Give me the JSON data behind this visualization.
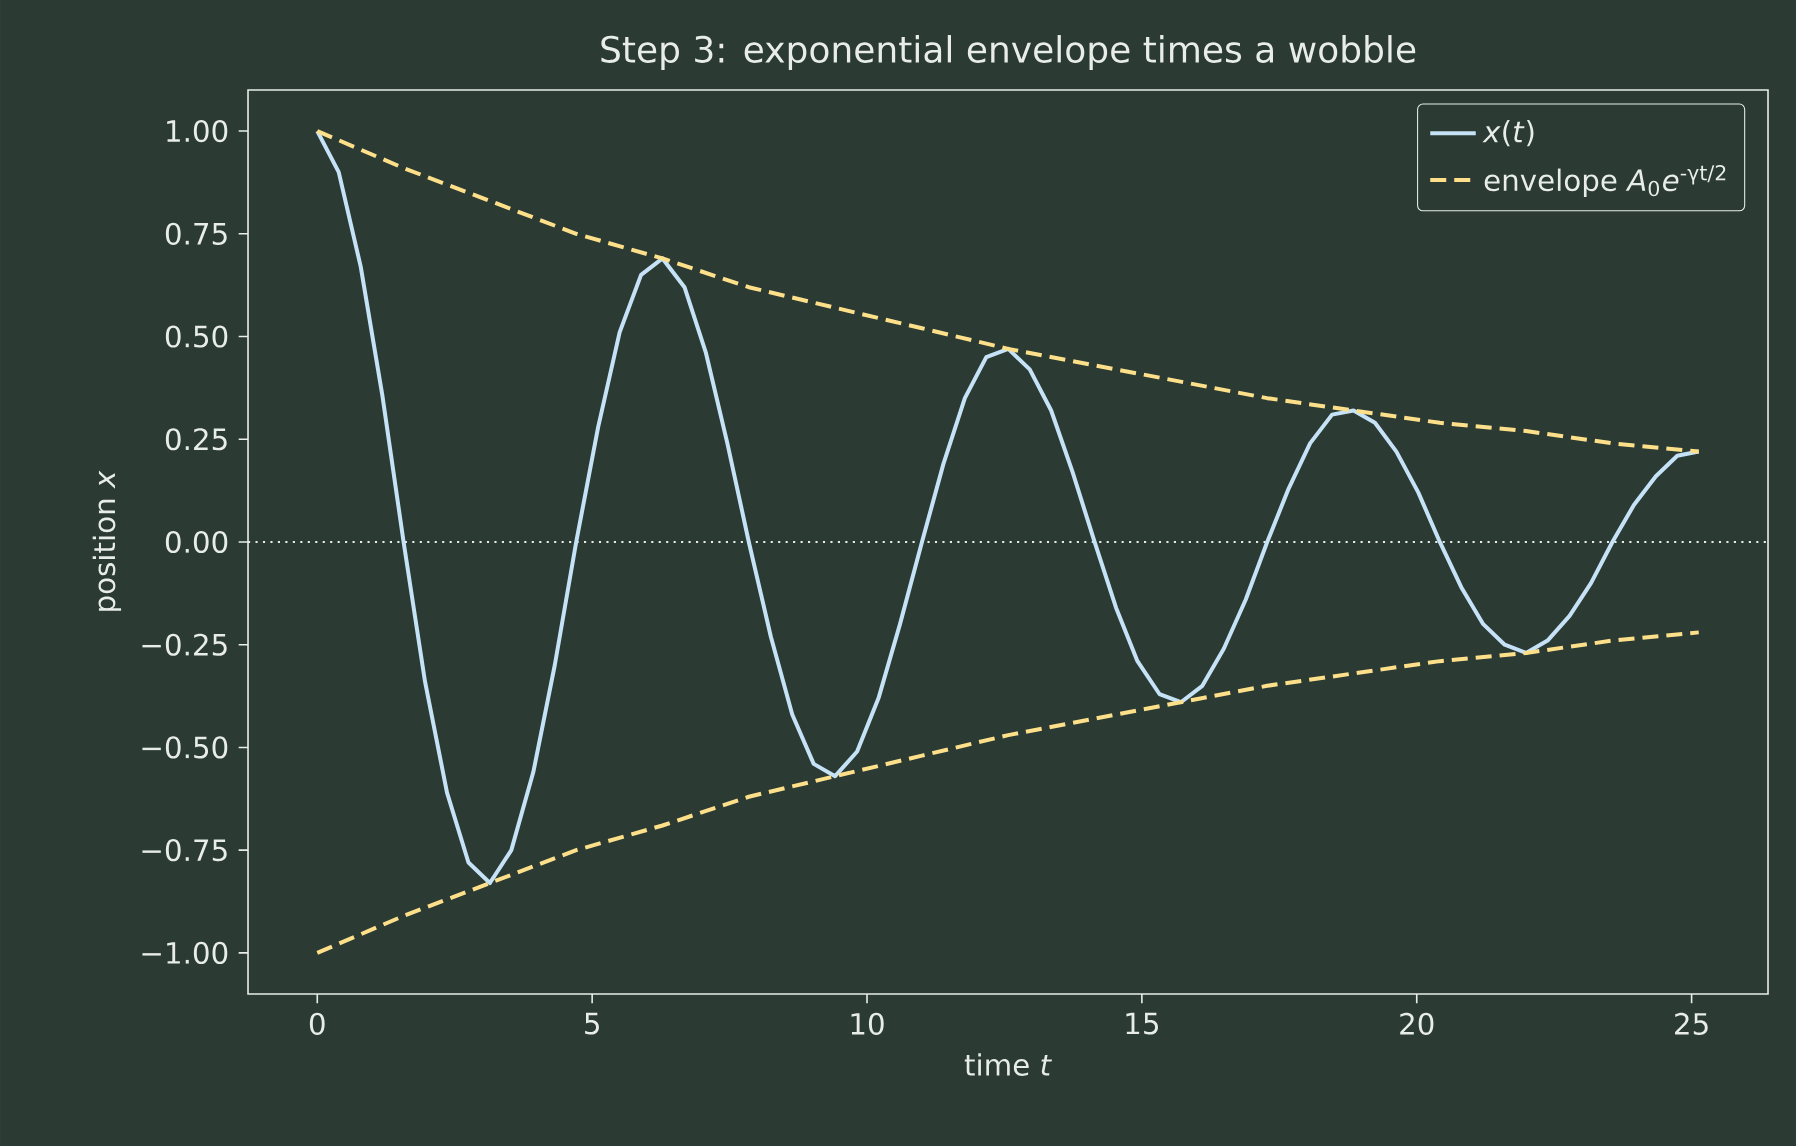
{
  "chart_data": {
    "type": "line",
    "title": "Step 3: exponential envelope times a wobble",
    "xlabel": "time *t*",
    "ylabel": "position *x*",
    "xlim": [
      -1.26,
      26.39
    ],
    "ylim": [
      -1.1,
      1.1
    ],
    "xticks": [
      0,
      5,
      10,
      15,
      20,
      25
    ],
    "yticks": [
      {
        "value": -1,
        "label": "−1.00"
      },
      {
        "value": -0.75,
        "label": "−0.75"
      },
      {
        "value": -0.5,
        "label": "−0.50"
      },
      {
        "value": -0.25,
        "label": "−0.25"
      },
      {
        "value": 0,
        "label": "0.00"
      },
      {
        "value": 0.25,
        "label": "0.25"
      },
      {
        "value": 0.5,
        "label": "0.50"
      },
      {
        "value": 0.75,
        "label": "0.75"
      },
      {
        "value": 1,
        "label": "1.00"
      }
    ],
    "legend": "top right",
    "ref_lines": [
      {
        "axis": "y",
        "value": 0,
        "color": "#e8ede8",
        "line_style": "dotted"
      }
    ],
    "series": [
      {
        "name": "*x*(*t*)",
        "color": "#c6e2f7",
        "line_style": "solid",
        "x": [
          0,
          0.39,
          0.79,
          1.18,
          1.57,
          1.96,
          2.36,
          2.75,
          3.14,
          3.53,
          3.93,
          4.32,
          4.71,
          5.11,
          5.5,
          5.89,
          6.28,
          6.68,
          7.07,
          7.46,
          7.85,
          8.25,
          8.64,
          9.03,
          9.42,
          9.82,
          10.21,
          10.6,
          11.0,
          11.39,
          11.78,
          12.17,
          12.57,
          12.96,
          13.35,
          13.74,
          14.14,
          14.53,
          14.92,
          15.32,
          15.71,
          16.1,
          16.49,
          16.89,
          17.28,
          17.67,
          18.06,
          18.46,
          18.85,
          19.24,
          19.63,
          20.03,
          20.42,
          20.81,
          21.21,
          21.6,
          21.99,
          22.38,
          22.78,
          23.17,
          23.56,
          23.95,
          24.35,
          24.74,
          25.13
        ],
        "values": [
          1.0,
          0.9,
          0.67,
          0.36,
          0,
          -0.34,
          -0.61,
          -0.78,
          -0.83,
          -0.75,
          -0.56,
          -0.3,
          0,
          0.28,
          0.51,
          0.65,
          0.69,
          0.62,
          0.46,
          0.24,
          0,
          -0.23,
          -0.42,
          -0.54,
          -0.57,
          -0.51,
          -0.38,
          -0.2,
          0,
          0.19,
          0.35,
          0.45,
          0.47,
          0.42,
          0.32,
          0.17,
          0,
          -0.16,
          -0.29,
          -0.37,
          -0.39,
          -0.35,
          -0.26,
          -0.14,
          0,
          0.13,
          0.24,
          0.31,
          0.32,
          0.29,
          0.22,
          0.12,
          0,
          -0.11,
          -0.2,
          -0.25,
          -0.27,
          -0.24,
          -0.18,
          -0.1,
          0,
          0.09,
          0.16,
          0.21,
          0.22
        ]
      },
      {
        "name": "envelope *A*$_{0}$*e*$^{-γt/2}$",
        "color": "#ffe08a",
        "line_style": "dashed",
        "x": [
          0,
          1.57,
          3.14,
          4.71,
          6.28,
          7.85,
          9.42,
          11.0,
          12.57,
          14.14,
          15.71,
          17.28,
          18.85,
          20.42,
          21.99,
          23.56,
          25.13
        ],
        "values": [
          1.0,
          0.91,
          0.83,
          0.75,
          0.69,
          0.62,
          0.57,
          0.52,
          0.47,
          0.43,
          0.39,
          0.35,
          0.32,
          0.29,
          0.27,
          0.24,
          0.22
        ]
      },
      {
        "color": "#ffe08a",
        "line_style": "dashed",
        "x": [
          0,
          1.57,
          3.14,
          4.71,
          6.28,
          7.85,
          9.42,
          11.0,
          12.57,
          14.14,
          15.71,
          17.28,
          18.85,
          20.42,
          21.99,
          23.56,
          25.13
        ],
        "values": [
          -1.0,
          -0.91,
          -0.83,
          -0.75,
          -0.69,
          -0.62,
          -0.57,
          -0.52,
          -0.47,
          -0.43,
          -0.39,
          -0.35,
          -0.32,
          -0.29,
          -0.27,
          -0.24,
          -0.22
        ]
      }
    ]
  }
}
